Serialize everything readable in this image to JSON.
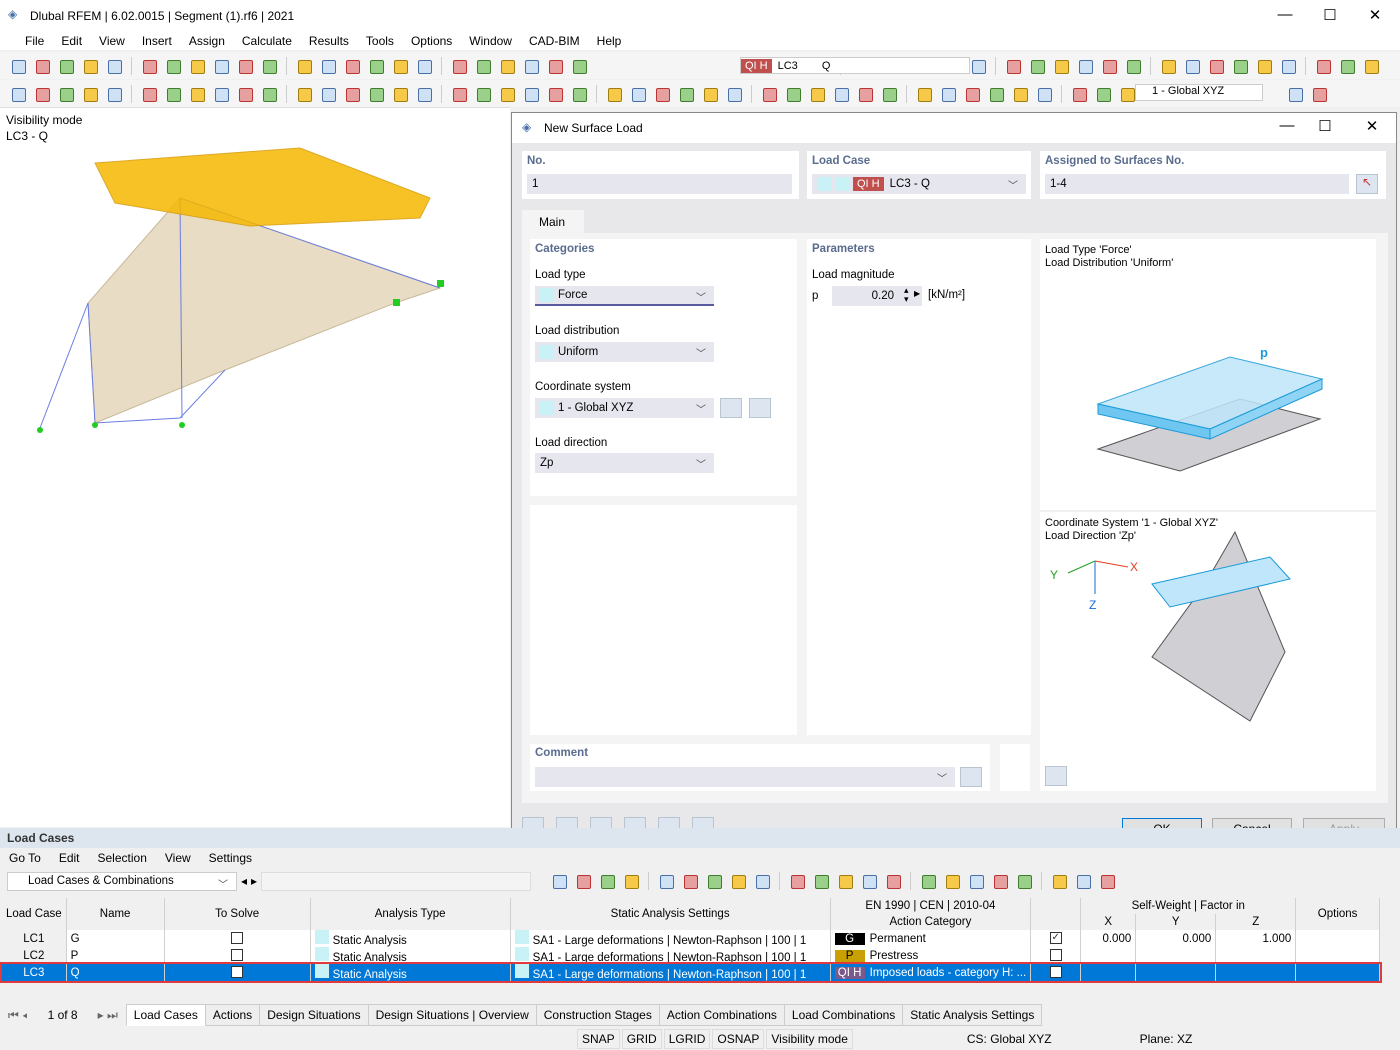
{
  "window": {
    "title": "Dlubal RFEM | 6.02.0015 | Segment (1).rf6 | 2021"
  },
  "menu": [
    "File",
    "Edit",
    "View",
    "Insert",
    "Assign",
    "Calculate",
    "Results",
    "Tools",
    "Options",
    "Window",
    "CAD-BIM",
    "Help"
  ],
  "toolbar": {
    "lc_badge": "QI H",
    "lc_id": "LC3",
    "lc_name": "Q",
    "coord_system": "1 - Global XYZ"
  },
  "viewport": {
    "mode": "Visibility mode",
    "load_case": "LC3 - Q"
  },
  "dialog": {
    "title": "New Surface Load",
    "no_label": "No.",
    "no_value": "1",
    "load_case_label": "Load Case",
    "load_case_badge": "QI H",
    "load_case_value": "LC3 - Q",
    "assigned_label": "Assigned to Surfaces No.",
    "assigned_value": "1-4",
    "tab_main": "Main",
    "categories": "Categories",
    "load_type_label": "Load type",
    "load_type": "Force",
    "load_distribution_label": "Load distribution",
    "load_distribution": "Uniform",
    "coord_system_label": "Coordinate system",
    "coord_system": "1 - Global XYZ",
    "load_direction_label": "Load direction",
    "load_direction": "Zp",
    "parameters": "Parameters",
    "load_magnitude_label": "Load magnitude",
    "p_symbol": "p",
    "p_value": "0.20",
    "p_unit": "[kN/m²]",
    "info1_line1": "Load Type 'Force'",
    "info1_line2": "Load Distribution 'Uniform'",
    "info2_line1": "Coordinate System '1 - Global XYZ'",
    "info2_line2": "Load Direction 'Zp'",
    "diagram_p": "p",
    "axis_x": "X",
    "axis_y": "Y",
    "axis_z": "Z",
    "comment_label": "Comment",
    "ok": "OK",
    "cancel": "Cancel",
    "apply": "Apply"
  },
  "load_cases": {
    "title": "Load Cases",
    "menu": [
      "Go To",
      "Edit",
      "Selection",
      "View",
      "Settings"
    ],
    "filter": "Load Cases & Combinations",
    "headers": {
      "load_case": "Load Case",
      "name": "Name",
      "to_solve": "To Solve",
      "analysis_type": "Analysis Type",
      "static_settings": "Static Analysis Settings",
      "standard": "EN 1990 | CEN | 2010-04",
      "action_category": "Action Category",
      "self_weight": "Self-Weight | Factor in",
      "x": "X",
      "y": "Y",
      "z": "Z",
      "options": "Options"
    },
    "rows": [
      {
        "id": "LC1",
        "name": "G",
        "to_solve": false,
        "analysis": "Static Analysis",
        "settings": "SA1 - Large deformations | Newton-Raphson | 100 | 1",
        "badge": "G",
        "badge_color": "#000000",
        "category": "Permanent",
        "sw": true,
        "x": "0.000",
        "y": "0.000",
        "z": "1.000"
      },
      {
        "id": "LC2",
        "name": "P",
        "to_solve": false,
        "analysis": "Static Analysis",
        "settings": "SA1 - Large deformations | Newton-Raphson | 100 | 1",
        "badge": "P",
        "badge_color": "#c8a000",
        "category": "Prestress",
        "sw": false,
        "x": "",
        "y": "",
        "z": ""
      },
      {
        "id": "LC3",
        "name": "Q",
        "to_solve": false,
        "analysis": "Static Analysis",
        "settings": "SA1 - Large deformations | Newton-Raphson | 100 | 1",
        "badge": "QI H",
        "badge_color": "#7a5a8a",
        "category": "Imposed loads - category H: ...",
        "sw": false,
        "x": "",
        "y": "",
        "z": "",
        "selected": true
      }
    ],
    "pager": "1 of 8",
    "tabs": [
      "Load Cases",
      "Actions",
      "Design Situations",
      "Design Situations | Overview",
      "Construction Stages",
      "Action Combinations",
      "Load Combinations",
      "Static Analysis Settings"
    ]
  },
  "status": {
    "snap": "SNAP",
    "grid": "GRID",
    "lgrid": "LGRID",
    "osnap": "OSNAP",
    "mode": "Visibility mode",
    "cs": "CS: Global XYZ",
    "plane": "Plane: XZ"
  },
  "colors": {
    "selection": "#0078d7",
    "highlight": "#e0393e",
    "surface": "#e8dcc4",
    "load": "#f5b800"
  }
}
